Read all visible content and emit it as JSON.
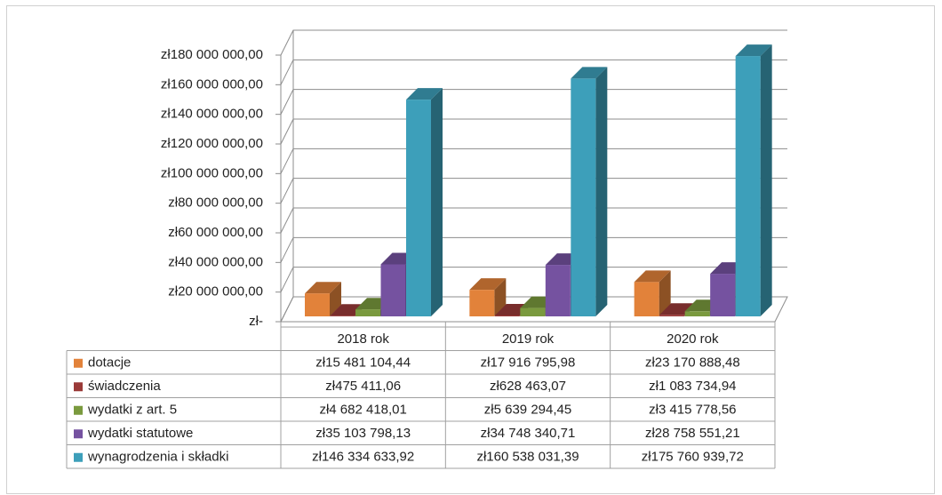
{
  "chart_data": {
    "type": "bar3d_table",
    "categories": [
      "2018 rok",
      "2019 rok",
      "2020 rok"
    ],
    "series": [
      {
        "name": "dotacje",
        "color": "#e2823a",
        "values": [
          15481104.44,
          17916795.98,
          23170888.48
        ],
        "value_labels": [
          "zł15 481 104,44",
          "zł17 916 795,98",
          "zł23 170 888,48"
        ]
      },
      {
        "name": "świadczenia",
        "color": "#9a3a38",
        "values": [
          475411.06,
          628463.07,
          1083734.94
        ],
        "value_labels": [
          "zł475 411,06",
          "zł628 463,07",
          "zł1 083 734,94"
        ]
      },
      {
        "name": "wydatki z art. 5",
        "color": "#7a9a3e",
        "values": [
          4682418.01,
          5639294.45,
          3415778.56
        ],
        "value_labels": [
          "zł4 682 418,01",
          "zł5 639 294,45",
          "zł3 415 778,56"
        ]
      },
      {
        "name": "wydatki statutowe",
        "color": "#7552a0",
        "values": [
          35103798.13,
          34748340.71,
          28758551.21
        ],
        "value_labels": [
          "zł35 103 798,13",
          "zł34 748 340,71",
          "zł28 758 551,21"
        ]
      },
      {
        "name": "wynagrodzenia i składki",
        "color": "#3d9fba",
        "values": [
          146334633.92,
          160538031.39,
          175760939.72
        ],
        "value_labels": [
          "zł146 334 633,92",
          "zł160 538 031,39",
          "zł175 760 939,72"
        ]
      }
    ],
    "ylim": [
      0,
      180000000
    ],
    "yticks": [
      {
        "value": 0,
        "label": "zł-"
      },
      {
        "value": 20000000,
        "label": "zł20 000 000,00"
      },
      {
        "value": 40000000,
        "label": "zł40 000 000,00"
      },
      {
        "value": 60000000,
        "label": "zł60 000 000,00"
      },
      {
        "value": 80000000,
        "label": "zł80 000 000,00"
      },
      {
        "value": 100000000,
        "label": "zł100 000 000,00"
      },
      {
        "value": 120000000,
        "label": "zł120 000 000,00"
      },
      {
        "value": 140000000,
        "label": "zł140 000 000,00"
      },
      {
        "value": 160000000,
        "label": "zł160 000 000,00"
      },
      {
        "value": 180000000,
        "label": "zł180 000 000,00"
      }
    ],
    "grid": true
  }
}
